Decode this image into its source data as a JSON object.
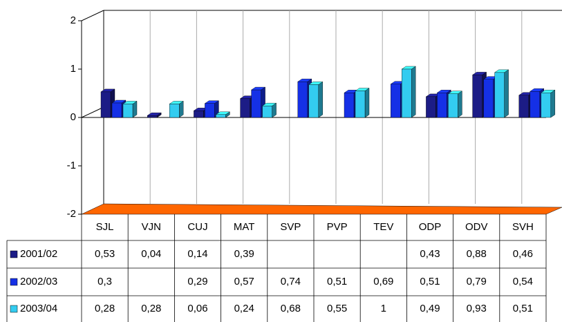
{
  "chart_data": {
    "type": "bar3d",
    "categories": [
      "SJL",
      "VJN",
      "CUJ",
      "MAT",
      "SVP",
      "PVP",
      "TEV",
      "ODP",
      "ODV",
      "SVH"
    ],
    "series": [
      {
        "name": "2001/02",
        "color": "#1c1c86",
        "values": [
          0.53,
          0.04,
          0.14,
          0.39,
          null,
          null,
          null,
          0.43,
          0.88,
          0.46
        ],
        "value_labels": [
          "0,53",
          "0,04",
          "0,14",
          "0,39",
          null,
          null,
          null,
          "0,43",
          "0,88",
          "0,46"
        ]
      },
      {
        "name": "2002/03",
        "color": "#1530e6",
        "values": [
          0.3,
          null,
          0.29,
          0.57,
          0.74,
          0.51,
          0.69,
          0.51,
          0.79,
          0.54
        ],
        "value_labels": [
          "0,3",
          null,
          "0,29",
          "0,57",
          "0,74",
          "0,51",
          "0,69",
          "0,51",
          "0,79",
          "0,54"
        ]
      },
      {
        "name": "2003/04",
        "color": "#33ccf0",
        "values": [
          0.28,
          0.28,
          0.06,
          0.24,
          0.68,
          0.55,
          1,
          0.49,
          0.93,
          0.51
        ],
        "value_labels": [
          "0,28",
          "0,28",
          "0,06",
          "0,24",
          "0,68",
          "0,55",
          "1",
          "0,49",
          "0,93",
          "0,51"
        ]
      }
    ],
    "ylim": [
      -2,
      2
    ],
    "yticks": [
      2,
      1,
      0,
      -1,
      -2
    ],
    "grid": true,
    "floor_color": "#ff6600"
  }
}
